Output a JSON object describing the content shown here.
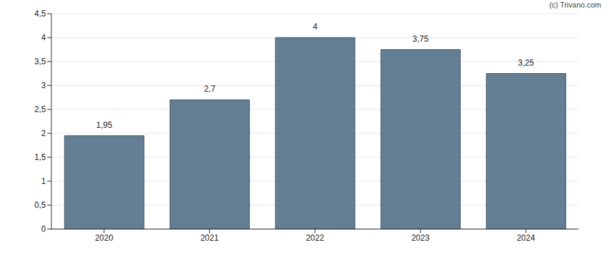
{
  "chart_data": {
    "type": "bar",
    "categories": [
      "2020",
      "2021",
      "2022",
      "2023",
      "2024"
    ],
    "values": [
      1.95,
      2.7,
      4,
      3.75,
      3.25
    ],
    "value_labels": [
      "1,95",
      "2,7",
      "4",
      "3,75",
      "3,25"
    ],
    "data_labels": true,
    "color": "#647f94",
    "ylim": [
      0,
      4.5
    ],
    "yticks": [
      0,
      {
        "value": 0.5,
        "label": "0,5"
      },
      1,
      {
        "value": 1.5,
        "label": "1,5"
      },
      2,
      {
        "value": 2.5,
        "label": "2,5"
      },
      3,
      {
        "value": 3.5,
        "label": "3,5"
      },
      4,
      {
        "value": 4.5,
        "label": "4,5"
      }
    ],
    "grid": true,
    "annotations": [
      "(c) Trivano.com"
    ]
  }
}
